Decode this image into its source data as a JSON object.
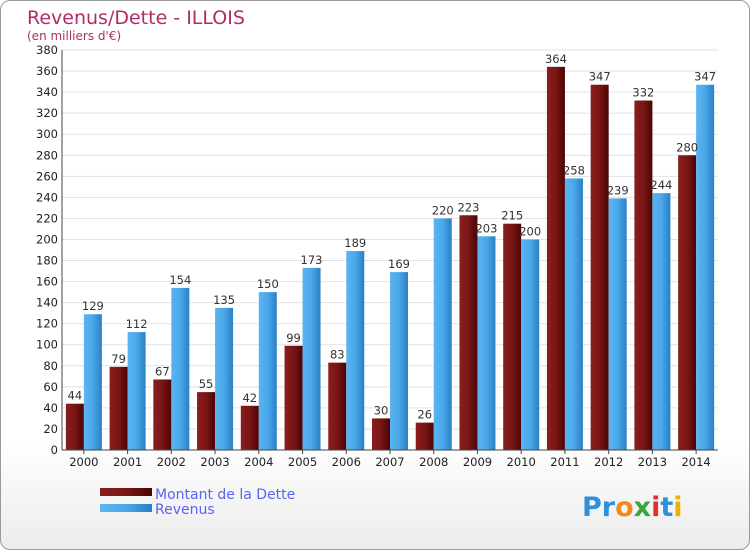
{
  "chart_data": {
    "type": "bar",
    "title": "Revenus/Dette - ILLOIS",
    "subtitle": "(en milliers d'€)",
    "categories": [
      "2000",
      "2001",
      "2002",
      "2003",
      "2004",
      "2005",
      "2006",
      "2007",
      "2008",
      "2009",
      "2010",
      "2011",
      "2012",
      "2013",
      "2014"
    ],
    "series": [
      {
        "name": "Montant de la Dette",
        "color": "#6b0f0f",
        "values": [
          44,
          79,
          67,
          55,
          42,
          99,
          83,
          30,
          26,
          223,
          215,
          364,
          347,
          332,
          280
        ]
      },
      {
        "name": "Revenus",
        "color": "#3d9be0",
        "values": [
          129,
          112,
          154,
          135,
          150,
          173,
          189,
          169,
          220,
          203,
          200,
          258,
          239,
          244,
          347
        ]
      }
    ],
    "ylim": [
      0,
      380
    ],
    "ytick_step": 20,
    "grid": true,
    "legend_position": "bottom-left"
  },
  "logo": {
    "text": "Proxiti"
  }
}
